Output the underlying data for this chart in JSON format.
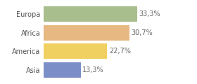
{
  "categories": [
    "Europa",
    "Africa",
    "America",
    "Asia"
  ],
  "values": [
    33.3,
    30.7,
    22.7,
    13.3
  ],
  "labels": [
    "33,3%",
    "30,7%",
    "22,7%",
    "13,3%"
  ],
  "bar_colors": [
    "#a8be8c",
    "#e8b882",
    "#f0d060",
    "#7b8ec8"
  ],
  "background_color": "#ffffff",
  "xlim": [
    0,
    42
  ],
  "label_fontsize": 7.0,
  "tick_fontsize": 7.0,
  "bar_height": 0.82
}
